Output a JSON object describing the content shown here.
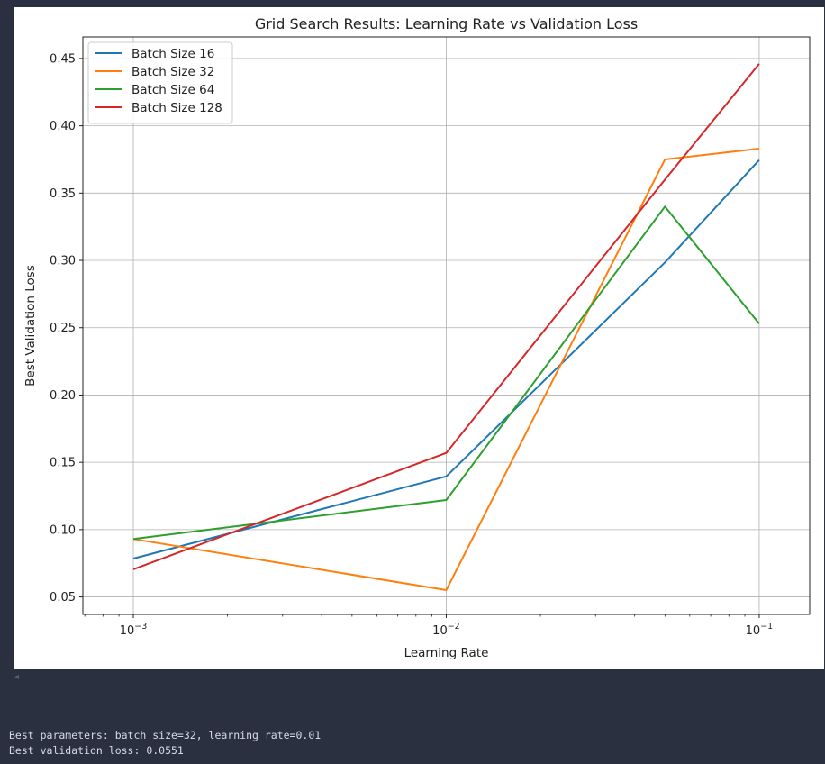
{
  "chart_data": {
    "type": "line",
    "title": "Grid Search Results: Learning Rate vs Validation Loss",
    "xlabel": "Learning Rate",
    "ylabel": "Best Validation Loss",
    "xscale": "log",
    "x": [
      0.001,
      0.01,
      0.05,
      0.1
    ],
    "xlim": [
      0.00069,
      0.145
    ],
    "ylim": [
      0.037,
      0.466
    ],
    "yticks": [
      0.05,
      0.1,
      0.15,
      0.2,
      0.25,
      0.3,
      0.35,
      0.4,
      0.45
    ],
    "ytick_labels": [
      "0.05",
      "0.10",
      "0.15",
      "0.20",
      "0.25",
      "0.30",
      "0.35",
      "0.40",
      "0.45"
    ],
    "xticks": [
      {
        "value": 0.001,
        "base": "10",
        "exp": "−3"
      },
      {
        "value": 0.01,
        "base": "10",
        "exp": "−2"
      },
      {
        "value": 0.1,
        "base": "10",
        "exp": "−1"
      }
    ],
    "grid": true,
    "legend_position": "upper-left",
    "series": [
      {
        "name": "Batch Size 16",
        "color": "#1f77b4",
        "values": [
          0.0785,
          0.1395,
          0.2985,
          0.3745
        ]
      },
      {
        "name": "Batch Size 32",
        "color": "#ff7f0e",
        "values": [
          0.093,
          0.0551,
          0.375,
          0.383
        ]
      },
      {
        "name": "Batch Size 64",
        "color": "#2ca02c",
        "values": [
          0.093,
          0.122,
          0.34,
          0.253
        ]
      },
      {
        "name": "Batch Size 128",
        "color": "#d62728",
        "values": [
          0.0705,
          0.157,
          0.36,
          0.446
        ]
      }
    ]
  },
  "output": {
    "line1": "Best parameters: batch_size=32, learning_rate=0.01",
    "line2": "Best validation loss: 0.0551"
  },
  "scroll_arrow_icon": "◂"
}
